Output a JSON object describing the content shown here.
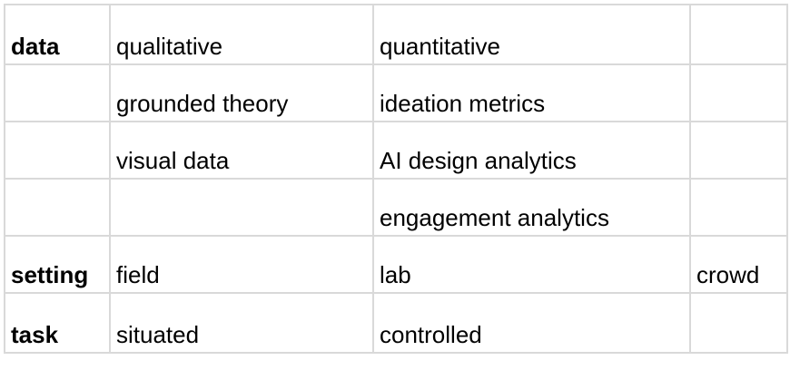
{
  "rows": [
    {
      "header": "data",
      "cells": [
        "qualitative",
        "quantitative",
        ""
      ]
    },
    {
      "header": "",
      "cells": [
        "grounded theory",
        "ideation metrics",
        ""
      ]
    },
    {
      "header": "",
      "cells": [
        "visual data",
        "AI design analytics",
        ""
      ]
    },
    {
      "header": "",
      "cells": [
        "",
        "engagement analytics",
        ""
      ]
    },
    {
      "header": "setting",
      "cells": [
        "field",
        "lab",
        "crowd"
      ]
    },
    {
      "header": "task",
      "cells": [
        "situated",
        "controlled",
        ""
      ]
    }
  ]
}
